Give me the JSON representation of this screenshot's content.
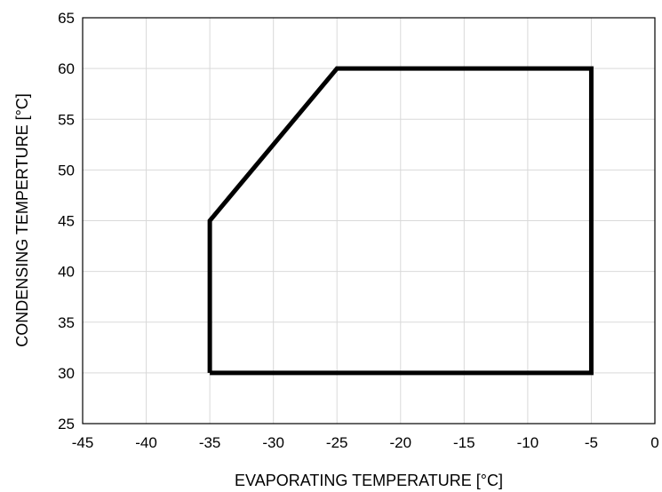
{
  "chart_data": {
    "type": "line",
    "xlabel": "EVAPORATING TEMPERATURE [°C]",
    "ylabel": "CONDENSING TEMPERTURE [°C]",
    "xlim": [
      -45,
      0
    ],
    "ylim": [
      25,
      65
    ],
    "xticks": [
      -45,
      -40,
      -35,
      -30,
      -25,
      -20,
      -15,
      -10,
      -5,
      0
    ],
    "yticks": [
      25,
      30,
      35,
      40,
      45,
      50,
      55,
      60,
      65
    ],
    "grid": true,
    "series": [
      {
        "x": [
          -35,
          -35,
          -25,
          -5,
          -5,
          -35
        ],
        "y": [
          30,
          45,
          60,
          60,
          30,
          30
        ],
        "color": "#000000"
      }
    ]
  }
}
